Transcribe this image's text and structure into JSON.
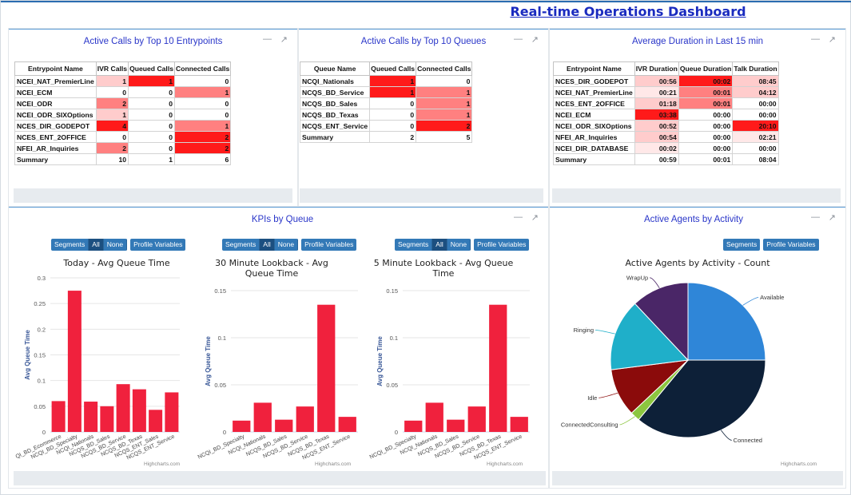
{
  "dashboard": {
    "title": "Real-time Operations Dashboard"
  },
  "panels": {
    "entry": {
      "title": "Active Calls by Top 10 Entrypoints",
      "columns": [
        "Entrypoint Name",
        "IVR Calls",
        "Queued Calls",
        "Connected Calls"
      ],
      "rows": [
        [
          "NCEI_NAT_PremierLine",
          "1",
          "1",
          "0"
        ],
        [
          "NCEI_ECM",
          "0",
          "0",
          "1"
        ],
        [
          "NCEI_ODR",
          "2",
          "0",
          "0"
        ],
        [
          "NCEI_ODR_SIXOptions",
          "1",
          "0",
          "0"
        ],
        [
          "NCES_DIR_GODEPOT",
          "4",
          "0",
          "1"
        ],
        [
          "NCES_ENT_2OFFICE",
          "0",
          "0",
          "2"
        ],
        [
          "NFEI_AR_Inquiries",
          "2",
          "0",
          "2"
        ]
      ],
      "summary": [
        "Summary",
        "10",
        "1",
        "6"
      ]
    },
    "queues": {
      "title": "Active Calls by Top 10 Queues",
      "columns": [
        "Queue Name",
        "Queued Calls",
        "Connected Calls"
      ],
      "rows": [
        [
          "NCQI_Nationals",
          "1",
          "0"
        ],
        [
          "NCQS_BD_Service",
          "1",
          "1"
        ],
        [
          "NCQS_BD_Sales",
          "0",
          "1"
        ],
        [
          "NCQS_BD_Texas",
          "0",
          "1"
        ],
        [
          "NCQS_ENT_Service",
          "0",
          "2"
        ]
      ],
      "summary": [
        "Summary",
        "2",
        "5"
      ]
    },
    "duration": {
      "title": "Average Duration in Last 15 min",
      "columns": [
        "Entrypoint Name",
        "IVR Duration",
        "Queue Duration",
        "Talk Duration"
      ],
      "rows": [
        [
          "NCES_DIR_GODEPOT",
          "00:56",
          "00:02",
          "08:45"
        ],
        [
          "NCEI_NAT_PremierLine",
          "00:21",
          "00:01",
          "04:12"
        ],
        [
          "NCES_ENT_2OFFICE",
          "01:18",
          "00:01",
          "00:00"
        ],
        [
          "NCEI_ECM",
          "03:38",
          "00:00",
          "00:00"
        ],
        [
          "NCEI_ODR_SIXOptions",
          "00:52",
          "00:00",
          "20:10"
        ],
        [
          "NFEI_AR_Inquiries",
          "00:54",
          "00:00",
          "02:21"
        ],
        [
          "NCEI_DIR_DATABASE",
          "00:02",
          "00:00",
          "00:00"
        ]
      ],
      "summary": [
        "Summary",
        "00:59",
        "00:01",
        "08:04"
      ]
    },
    "kpis": {
      "title": "KPIs by Queue"
    },
    "agents": {
      "title": "Active Agents by Activity"
    }
  },
  "buttons": {
    "segments": "Segments",
    "all": "All",
    "none": "None",
    "profile_variables": "Profile Variables"
  },
  "credit": "Highcharts.com",
  "colors": {
    "bar": "#f0213d",
    "heat_strong": "#ff1a1a",
    "heat_medium": "#ff8080",
    "heat_light": "#ffcccc",
    "heat_faint": "#ffe8e8"
  },
  "chart_data": [
    {
      "type": "bar",
      "title": "Today - Avg Queue Time",
      "ylabel": "Avg Queue Time",
      "ylim": [
        0,
        0.3
      ],
      "yticks": [
        "0",
        "0.05",
        "0.1",
        "0.15",
        "0.2",
        "0.25",
        "0.3"
      ],
      "categories": [
        "NCQI_BD_Ecommerce",
        "NCQI_BD_Specialty",
        "NCQI_Nationals",
        "NCQS_BD_Sales",
        "NCQS_BD_Service",
        "NCQS_BD_Texas",
        "NCQS_ENT_Sales",
        "NCQS_ENT_Service"
      ],
      "category_labels": [
        "QI_BD_Ecommerce",
        "NCQI_BD_Specialty",
        "NCQI_Nationals",
        "NCQS_BD_Sales",
        "NCQS_BD_Service",
        "NCQS_BD_Texas",
        "NCQS_ENT_Sales",
        "NCQS_ENT_Service"
      ],
      "values": [
        0.06,
        0.275,
        0.059,
        0.05,
        0.093,
        0.083,
        0.043,
        0.077
      ]
    },
    {
      "type": "bar",
      "title": "30 Minute Lookback - Avg Queue Time",
      "ylabel": "Avg Queue Time",
      "ylim": [
        0,
        0.15
      ],
      "yticks": [
        "0",
        "0.05",
        "0.1",
        "0.15"
      ],
      "categories": [
        "NCQI_BD_Specialty",
        "NCQI_Nationals",
        "NCQS_BD_Sales",
        "NCQS_BD_Service",
        "NCQS_BD_Texas",
        "NCQS_ENT_Service"
      ],
      "category_labels": [
        "NCQI_BD_Specialty",
        "NCQI_Nationals",
        "NCQS_BD_Sales",
        "NCQS_BD_Service",
        "NCQS_BD_Texas",
        "NCQS_ENT_Service"
      ],
      "values": [
        0.012,
        0.031,
        0.013,
        0.027,
        0.135,
        0.016
      ]
    },
    {
      "type": "bar",
      "title": "5 Minute Lookback - Avg Queue Time",
      "ylabel": "Avg Queue Time",
      "ylim": [
        0,
        0.15
      ],
      "yticks": [
        "0",
        "0.05",
        "0.1",
        "0.15"
      ],
      "categories": [
        "NCQI_BD_Specialty",
        "NCQI_Nationals",
        "NCQS_BD_Sales",
        "NCQS_BD_Service",
        "NCQS_BD_Texas",
        "NCQS_ENT_Service"
      ],
      "category_labels": [
        "NCQI_BD_Specialty",
        "NCQI_Nationals",
        "NCQS_BD_Sales",
        "NCQS_BD_Service",
        "NCQS_BD_Texas",
        "NCQS_ENT_Service"
      ],
      "values": [
        0.012,
        0.031,
        0.013,
        0.027,
        0.135,
        0.016
      ]
    },
    {
      "type": "pie",
      "title": "Active Agents by Activity - Count",
      "slices": [
        {
          "name": "Available",
          "value": 25,
          "color": "#2f86d8"
        },
        {
          "name": "Connected",
          "value": 36,
          "color": "#0d2038"
        },
        {
          "name": "ConnectedConsulting",
          "value": 2,
          "color": "#8cc63f"
        },
        {
          "name": "Idle",
          "value": 10,
          "color": "#8b0b0b"
        },
        {
          "name": "Ringing",
          "value": 15,
          "color": "#1fafc9"
        },
        {
          "name": "WrapUp",
          "value": 12,
          "color": "#4a2667"
        }
      ]
    }
  ]
}
